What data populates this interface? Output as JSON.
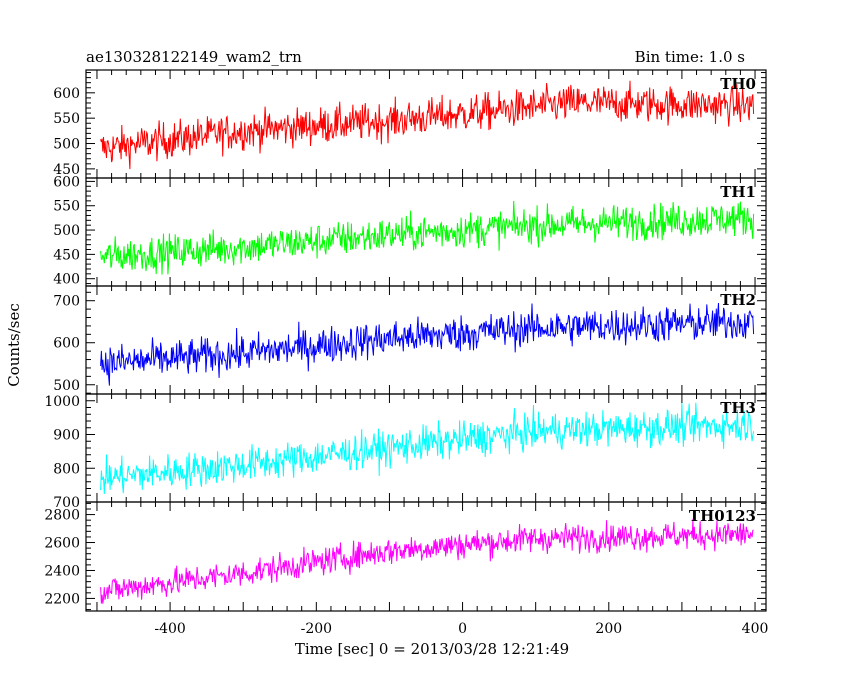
{
  "chart_data": {
    "type": "line",
    "title_left": "ae130328122149_wam2_trn",
    "title_right": "Bin time: 1.0 s",
    "xlabel": "Time [sec] 0 = 2013/03/28 12:21:49",
    "ylabel": "Counts/sec",
    "xlim": [
      -515,
      415
    ],
    "x_ticks": [
      -400,
      -200,
      0,
      200,
      400
    ],
    "bin_time": 1.0,
    "x_range": [
      -495,
      398
    ],
    "grid": false,
    "panels": [
      {
        "name": "TH0",
        "color": "#ff0000",
        "ylim": [
          432,
          645
        ],
        "y_ticks": [
          450,
          500,
          550,
          600
        ],
        "trend": [
          [
            -495,
            490
          ],
          [
            -300,
            525
          ],
          [
            -100,
            545
          ],
          [
            50,
            565
          ],
          [
            150,
            580
          ],
          [
            400,
            575
          ]
        ],
        "noise_amplitude": 40,
        "clip": [
          432,
          645
        ]
      },
      {
        "name": "TH1",
        "color": "#00ff00",
        "ylim": [
          385,
          607
        ],
        "y_ticks": [
          400,
          450,
          500,
          550,
          600
        ],
        "trend": [
          [
            -495,
            445
          ],
          [
            -300,
            465
          ],
          [
            -100,
            490
          ],
          [
            100,
            510
          ],
          [
            400,
            525
          ]
        ],
        "noise_amplitude": 40,
        "clip": [
          385,
          607
        ]
      },
      {
        "name": "TH2",
        "color": "#0000ff",
        "ylim": [
          478,
          735
        ],
        "y_ticks": [
          500,
          600,
          700
        ],
        "trend": [
          [
            -495,
            550
          ],
          [
            -300,
            575
          ],
          [
            -100,
            610
          ],
          [
            100,
            635
          ],
          [
            400,
            650
          ]
        ],
        "noise_amplitude": 48,
        "clip": [
          478,
          735
        ]
      },
      {
        "name": "TH3",
        "color": "#00ffff",
        "ylim": [
          700,
          1020
        ],
        "y_ticks": [
          700,
          800,
          900,
          1000
        ],
        "trend": [
          [
            -495,
            770
          ],
          [
            -300,
            810
          ],
          [
            -100,
            860
          ],
          [
            100,
            910
          ],
          [
            400,
            930
          ]
        ],
        "noise_amplitude": 58,
        "clip": [
          700,
          1020
        ]
      },
      {
        "name": "TH0123",
        "color": "#ff00ff",
        "ylim": [
          2110,
          2890
        ],
        "y_ticks": [
          2200,
          2400,
          2600,
          2800
        ],
        "trend": [
          [
            -495,
            2250
          ],
          [
            -300,
            2380
          ],
          [
            -100,
            2540
          ],
          [
            100,
            2630
          ],
          [
            400,
            2660
          ]
        ],
        "noise_amplitude": 110,
        "clip": [
          2110,
          2890
        ]
      }
    ]
  }
}
